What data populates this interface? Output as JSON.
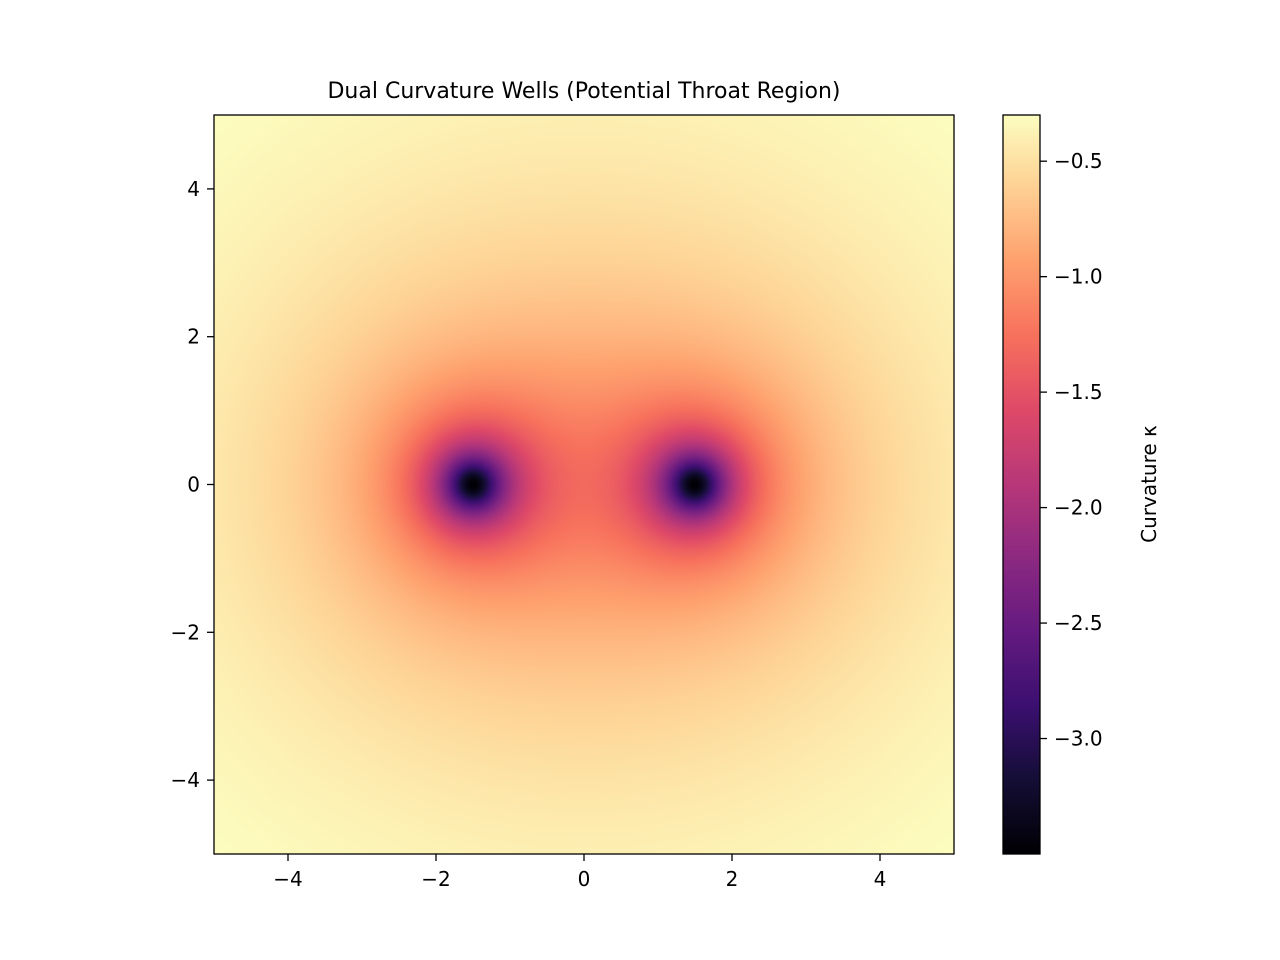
{
  "chart_data": {
    "type": "heatmap",
    "title": "Dual Curvature Wells (Potential Throat Region)",
    "xlabel": "",
    "ylabel": "",
    "xlim": [
      -5,
      5
    ],
    "ylim": [
      -5,
      5
    ],
    "x_ticks": [
      -4,
      -2,
      0,
      2,
      4
    ],
    "y_ticks": [
      -4,
      -2,
      0,
      2,
      4
    ],
    "x_tick_labels": [
      "−4",
      "−2",
      "0",
      "2",
      "4"
    ],
    "y_tick_labels": [
      "−4",
      "−2",
      "0",
      "2",
      "4"
    ],
    "colormap": "magma",
    "wells": [
      {
        "x": -1.5,
        "y": 0,
        "min_value": -3.5
      },
      {
        "x": 1.5,
        "y": 0,
        "min_value": -3.5
      }
    ],
    "value_range": [
      -3.5,
      -0.3
    ],
    "colorbar": {
      "label": "Curvature κ",
      "ticks": [
        -0.5,
        -1.0,
        -1.5,
        -2.0,
        -2.5,
        -3.0
      ],
      "tick_labels": [
        "−0.5",
        "−1.0",
        "−1.5",
        "−2.0",
        "−2.5",
        "−3.0"
      ],
      "placement": "right"
    },
    "grid": false
  }
}
